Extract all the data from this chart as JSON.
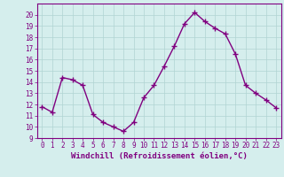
{
  "x": [
    0,
    1,
    2,
    3,
    4,
    5,
    6,
    7,
    8,
    9,
    10,
    11,
    12,
    13,
    14,
    15,
    16,
    17,
    18,
    19,
    20,
    21,
    22,
    23
  ],
  "y": [
    11.8,
    11.3,
    14.4,
    14.2,
    13.7,
    11.1,
    10.4,
    10.0,
    9.6,
    10.4,
    12.6,
    13.7,
    15.4,
    17.2,
    19.2,
    20.2,
    19.4,
    18.8,
    18.3,
    16.5,
    13.7,
    13.0,
    12.4,
    11.7
  ],
  "line_color": "#800080",
  "marker": "+",
  "marker_size": 4,
  "bg_color": "#d5eeed",
  "grid_color": "#b0d4d2",
  "xlabel": "Windchill (Refroidissement éolien,°C)",
  "ylim": [
    9,
    21
  ],
  "yticks": [
    9,
    10,
    11,
    12,
    13,
    14,
    15,
    16,
    17,
    18,
    19,
    20
  ],
  "xticks": [
    0,
    1,
    2,
    3,
    4,
    5,
    6,
    7,
    8,
    9,
    10,
    11,
    12,
    13,
    14,
    15,
    16,
    17,
    18,
    19,
    20,
    21,
    22,
    23
  ],
  "tick_fontsize": 5.5,
  "xlabel_fontsize": 6.5,
  "linewidth": 1.0,
  "marker_linewidth": 1.0
}
